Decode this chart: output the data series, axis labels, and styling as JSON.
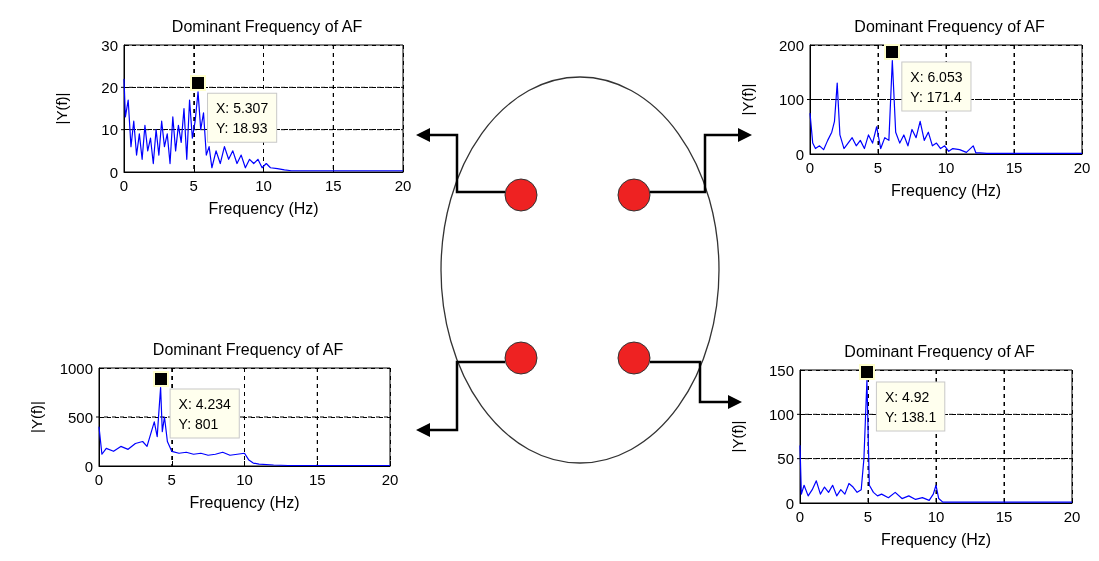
{
  "chart_data": [
    {
      "type": "line",
      "title": "Dominant Frequency of AF",
      "xlabel": "Frequency (Hz)",
      "ylabel": "|Y(f)|",
      "xlim": [
        0,
        20
      ],
      "xticks": [
        0,
        5,
        10,
        15,
        20
      ],
      "ylim": [
        0,
        30
      ],
      "yticks": [
        0,
        10,
        20,
        30
      ],
      "grid": true,
      "marker": "none",
      "line_style": "solid",
      "series": [
        {
          "color": "#0000ff",
          "x": [
            0,
            0.1,
            0.3,
            0.5,
            0.7,
            0.9,
            1.1,
            1.3,
            1.5,
            1.7,
            1.9,
            2.1,
            2.3,
            2.5,
            2.7,
            2.9,
            3.1,
            3.3,
            3.5,
            3.7,
            3.9,
            4.1,
            4.3,
            4.5,
            4.7,
            4.9,
            5.1,
            5.307,
            5.5,
            5.7,
            5.9,
            6.1,
            6.3,
            6.6,
            6.9,
            7.2,
            7.5,
            7.8,
            8.1,
            8.4,
            8.7,
            9.0,
            9.3,
            9.6,
            9.9,
            10.2,
            10.5,
            11,
            11.5,
            12,
            14,
            16,
            18,
            20
          ],
          "values": [
            22,
            13,
            17,
            6,
            12,
            4,
            9,
            3,
            11,
            5,
            8,
            2,
            10,
            4,
            12,
            6,
            9,
            2,
            13,
            5,
            11,
            7,
            15,
            3,
            17,
            8,
            12,
            18.93,
            10,
            14,
            4,
            6,
            1,
            5,
            2,
            6,
            3,
            5,
            2,
            4,
            1,
            3,
            2,
            3,
            1,
            2,
            1,
            0.8,
            0.5,
            0.3,
            0.3,
            0.3,
            0.3,
            0.3
          ]
        }
      ],
      "annotations": [
        {
          "text": "X: 5.307\nY: 18.93",
          "x": 5.307,
          "y": 18.93
        }
      ]
    },
    {
      "type": "line",
      "title": "Dominant Frequency of AF",
      "xlabel": "Frequency (Hz)",
      "ylabel": "|Y(f)|",
      "xlim": [
        0,
        20
      ],
      "xticks": [
        0,
        5,
        10,
        15,
        20
      ],
      "ylim": [
        0,
        200
      ],
      "yticks": [
        0,
        100,
        200
      ],
      "grid": true,
      "marker": "none",
      "line_style": "solid",
      "series": [
        {
          "color": "#0000ff",
          "x": [
            0,
            0.2,
            0.4,
            0.7,
            1,
            1.3,
            1.6,
            1.8,
            2,
            2.2,
            2.5,
            2.8,
            3.1,
            3.4,
            3.7,
            4,
            4.3,
            4.6,
            4.9,
            5.2,
            5.5,
            5.8,
            6.053,
            6.3,
            6.6,
            6.9,
            7.2,
            7.5,
            7.8,
            8.1,
            8.4,
            8.7,
            9,
            9.3,
            9.6,
            9.9,
            10.2,
            10.5,
            11,
            11.5,
            12,
            12.2,
            12.5,
            13,
            15,
            20
          ],
          "values": [
            75,
            20,
            10,
            15,
            8,
            25,
            40,
            60,
            130,
            35,
            10,
            20,
            30,
            15,
            25,
            10,
            35,
            20,
            50,
            10,
            30,
            25,
            171.4,
            40,
            20,
            35,
            15,
            45,
            30,
            60,
            25,
            40,
            15,
            20,
            10,
            15,
            5,
            10,
            8,
            3,
            15,
            2,
            2,
            1,
            1,
            1
          ]
        }
      ],
      "annotations": [
        {
          "text": "X: 6.053\nY: 171.4",
          "x": 6.053,
          "y": 171.4
        }
      ]
    },
    {
      "type": "line",
      "title": "Dominant Frequency of AF",
      "xlabel": "Frequency (Hz)",
      "ylabel": "|Y(f)|",
      "xlim": [
        0,
        20
      ],
      "xticks": [
        0,
        5,
        10,
        15,
        20
      ],
      "ylim": [
        0,
        1000
      ],
      "yticks": [
        0,
        500,
        1000
      ],
      "grid": true,
      "marker": "none",
      "line_style": "solid",
      "series": [
        {
          "color": "#0000ff",
          "x": [
            0,
            0.2,
            0.5,
            1,
            1.5,
            2,
            2.5,
            3,
            3.3,
            3.6,
            3.8,
            4.0,
            4.1,
            4.234,
            4.35,
            4.5,
            4.7,
            5,
            5.5,
            6,
            6.5,
            7,
            7.5,
            8,
            8.5,
            9,
            9.5,
            10,
            10.3,
            10.6,
            11,
            12,
            13,
            15,
            20
          ],
          "values": [
            400,
            120,
            180,
            150,
            200,
            170,
            230,
            250,
            200,
            350,
            450,
            300,
            520,
            801,
            350,
            500,
            250,
            150,
            130,
            140,
            120,
            130,
            110,
            120,
            140,
            110,
            120,
            130,
            60,
            30,
            20,
            10,
            5,
            5,
            5
          ]
        }
      ],
      "annotations": [
        {
          "text": "X: 4.234\nY: 801",
          "x": 4.234,
          "y": 801
        }
      ]
    },
    {
      "type": "line",
      "title": "Dominant Frequency of AF",
      "xlabel": "Frequency (Hz)",
      "ylabel": "|Y(f)|",
      "xlim": [
        0,
        20
      ],
      "xticks": [
        0,
        5,
        10,
        15,
        20
      ],
      "ylim": [
        0,
        150
      ],
      "yticks": [
        0,
        50,
        100,
        150
      ],
      "grid": true,
      "marker": "none",
      "line_style": "solid",
      "series": [
        {
          "color": "#0000ff",
          "x": [
            0,
            0.1,
            0.3,
            0.6,
            0.9,
            1.2,
            1.5,
            1.8,
            2.1,
            2.4,
            2.7,
            3,
            3.3,
            3.6,
            3.9,
            4.2,
            4.5,
            4.7,
            4.92,
            5.1,
            5.4,
            5.7,
            6,
            6.5,
            7,
            7.5,
            8,
            8.5,
            9,
            9.5,
            9.8,
            10,
            10.2,
            10.5,
            11,
            15,
            20
          ],
          "values": [
            65,
            10,
            20,
            8,
            15,
            25,
            10,
            18,
            12,
            20,
            8,
            15,
            10,
            22,
            18,
            12,
            15,
            50,
            138.1,
            20,
            12,
            8,
            10,
            6,
            12,
            5,
            8,
            4,
            6,
            3,
            10,
            20,
            5,
            1,
            1,
            1,
            1
          ]
        }
      ],
      "annotations": [
        {
          "text": "X: 4.92\nY: 138.1",
          "x": 4.92,
          "y": 138.1
        }
      ]
    }
  ]
}
